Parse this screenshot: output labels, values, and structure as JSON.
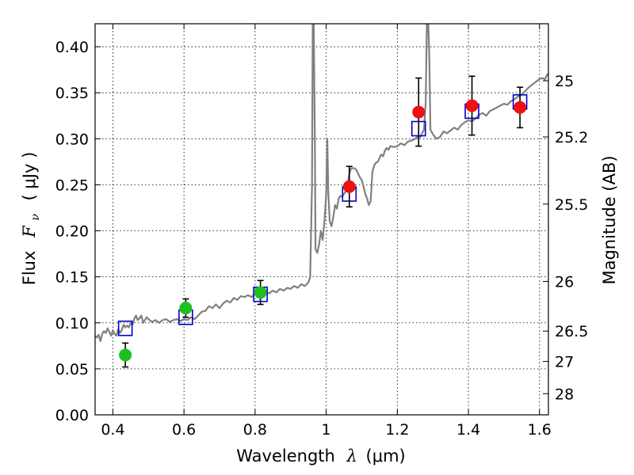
{
  "chart_data": {
    "type": "scatter",
    "xlabel": "Wavelength",
    "xlabel_symbol": "λ",
    "xlabel_unit": "(μm)",
    "ylabel": "Flux",
    "ylabel_symbol": "F",
    "ylabel_symbol_sub": "ν",
    "ylabel_unit": "( μJy )",
    "y2label": "Magnitude (AB)",
    "xlim": [
      0.35,
      1.625
    ],
    "ylim": [
      0.0,
      0.425
    ],
    "grid": true,
    "x_ticks": [
      0.4,
      0.6,
      0.8,
      1.0,
      1.2,
      1.4,
      1.6
    ],
    "x_tick_labels": [
      "0.4",
      "0.6",
      "0.8",
      "1",
      "1.2",
      "1.4",
      "1.6"
    ],
    "y_ticks": [
      0.0,
      0.05,
      0.1,
      0.15,
      0.2,
      0.25,
      0.3,
      0.35,
      0.4
    ],
    "y_tick_labels": [
      "0.00",
      "0.05",
      "0.10",
      "0.15",
      "0.20",
      "0.25",
      "0.30",
      "0.35",
      "0.40"
    ],
    "y2_ticks": [
      {
        "label": "25",
        "flux": 0.363
      },
      {
        "label": "25.2",
        "flux": 0.302
      },
      {
        "label": "25.5",
        "flux": 0.229
      },
      {
        "label": "26",
        "flux": 0.145
      },
      {
        "label": "26.5",
        "flux": 0.091
      },
      {
        "label": "27",
        "flux": 0.058
      },
      {
        "label": "28",
        "flux": 0.023
      }
    ],
    "series": [
      {
        "kind": "line",
        "color": "#808080",
        "points": [
          [
            0.35,
            0.086
          ],
          [
            0.355,
            0.084
          ],
          [
            0.36,
            0.087
          ],
          [
            0.365,
            0.08
          ],
          [
            0.37,
            0.088
          ],
          [
            0.375,
            0.091
          ],
          [
            0.38,
            0.089
          ],
          [
            0.385,
            0.094
          ],
          [
            0.39,
            0.09
          ],
          [
            0.395,
            0.086
          ],
          [
            0.4,
            0.092
          ],
          [
            0.405,
            0.088
          ],
          [
            0.41,
            0.086
          ],
          [
            0.415,
            0.093
          ],
          [
            0.42,
            0.089
          ],
          [
            0.425,
            0.092
          ],
          [
            0.43,
            0.098
          ],
          [
            0.435,
            0.095
          ],
          [
            0.44,
            0.097
          ],
          [
            0.445,
            0.095
          ],
          [
            0.45,
            0.1
          ],
          [
            0.455,
            0.098
          ],
          [
            0.46,
            0.104
          ],
          [
            0.465,
            0.108
          ],
          [
            0.47,
            0.103
          ],
          [
            0.475,
            0.105
          ],
          [
            0.48,
            0.108
          ],
          [
            0.485,
            0.1
          ],
          [
            0.49,
            0.103
          ],
          [
            0.495,
            0.106
          ],
          [
            0.5,
            0.104
          ],
          [
            0.51,
            0.101
          ],
          [
            0.52,
            0.103
          ],
          [
            0.53,
            0.1
          ],
          [
            0.54,
            0.103
          ],
          [
            0.55,
            0.104
          ],
          [
            0.56,
            0.101
          ],
          [
            0.57,
            0.103
          ],
          [
            0.58,
            0.104
          ],
          [
            0.59,
            0.102
          ],
          [
            0.6,
            0.104
          ],
          [
            0.61,
            0.103
          ],
          [
            0.62,
            0.106
          ],
          [
            0.63,
            0.104
          ],
          [
            0.64,
            0.108
          ],
          [
            0.65,
            0.112
          ],
          [
            0.66,
            0.113
          ],
          [
            0.67,
            0.118
          ],
          [
            0.68,
            0.116
          ],
          [
            0.69,
            0.12
          ],
          [
            0.7,
            0.116
          ],
          [
            0.71,
            0.121
          ],
          [
            0.72,
            0.124
          ],
          [
            0.73,
            0.122
          ],
          [
            0.74,
            0.127
          ],
          [
            0.75,
            0.125
          ],
          [
            0.76,
            0.129
          ],
          [
            0.77,
            0.128
          ],
          [
            0.78,
            0.13
          ],
          [
            0.79,
            0.128
          ],
          [
            0.8,
            0.132
          ],
          [
            0.81,
            0.133
          ],
          [
            0.82,
            0.131
          ],
          [
            0.83,
            0.134
          ],
          [
            0.84,
            0.132
          ],
          [
            0.85,
            0.135
          ],
          [
            0.86,
            0.133
          ],
          [
            0.87,
            0.137
          ],
          [
            0.88,
            0.135
          ],
          [
            0.89,
            0.138
          ],
          [
            0.9,
            0.137
          ],
          [
            0.91,
            0.14
          ],
          [
            0.92,
            0.138
          ],
          [
            0.93,
            0.142
          ],
          [
            0.94,
            0.14
          ],
          [
            0.95,
            0.144
          ],
          [
            0.955,
            0.15
          ],
          [
            0.96,
            0.25
          ],
          [
            0.962,
            0.425
          ],
          [
            0.965,
            0.425
          ],
          [
            0.968,
            0.3
          ],
          [
            0.97,
            0.18
          ],
          [
            0.975,
            0.176
          ],
          [
            0.98,
            0.185
          ],
          [
            0.985,
            0.2
          ],
          [
            0.99,
            0.19
          ],
          [
            0.995,
            0.21
          ],
          [
            1.0,
            0.24
          ],
          [
            1.003,
            0.3
          ],
          [
            1.006,
            0.24
          ],
          [
            1.01,
            0.21
          ],
          [
            1.015,
            0.205
          ],
          [
            1.02,
            0.215
          ],
          [
            1.025,
            0.228
          ],
          [
            1.03,
            0.224
          ],
          [
            1.035,
            0.235
          ],
          [
            1.04,
            0.238
          ],
          [
            1.045,
            0.237
          ],
          [
            1.05,
            0.24
          ],
          [
            1.055,
            0.243
          ],
          [
            1.06,
            0.25
          ],
          [
            1.065,
            0.262
          ],
          [
            1.07,
            0.268
          ],
          [
            1.08,
            0.268
          ],
          [
            1.085,
            0.266
          ],
          [
            1.09,
            0.262
          ],
          [
            1.095,
            0.258
          ],
          [
            1.1,
            0.255
          ],
          [
            1.105,
            0.248
          ],
          [
            1.11,
            0.24
          ],
          [
            1.115,
            0.235
          ],
          [
            1.12,
            0.228
          ],
          [
            1.125,
            0.232
          ],
          [
            1.13,
            0.264
          ],
          [
            1.135,
            0.271
          ],
          [
            1.14,
            0.274
          ],
          [
            1.145,
            0.275
          ],
          [
            1.15,
            0.279
          ],
          [
            1.155,
            0.283
          ],
          [
            1.16,
            0.281
          ],
          [
            1.165,
            0.287
          ],
          [
            1.17,
            0.29
          ],
          [
            1.175,
            0.288
          ],
          [
            1.18,
            0.292
          ],
          [
            1.19,
            0.291
          ],
          [
            1.2,
            0.292
          ],
          [
            1.21,
            0.295
          ],
          [
            1.22,
            0.293
          ],
          [
            1.23,
            0.297
          ],
          [
            1.24,
            0.298
          ],
          [
            1.25,
            0.3
          ],
          [
            1.26,
            0.303
          ],
          [
            1.265,
            0.302
          ],
          [
            1.27,
            0.306
          ],
          [
            1.275,
            0.31
          ],
          [
            1.28,
            0.34
          ],
          [
            1.283,
            0.425
          ],
          [
            1.287,
            0.425
          ],
          [
            1.29,
            0.39
          ],
          [
            1.293,
            0.31
          ],
          [
            1.3,
            0.305
          ],
          [
            1.31,
            0.3
          ],
          [
            1.32,
            0.302
          ],
          [
            1.33,
            0.308
          ],
          [
            1.34,
            0.306
          ],
          [
            1.35,
            0.309
          ],
          [
            1.36,
            0.312
          ],
          [
            1.37,
            0.31
          ],
          [
            1.38,
            0.315
          ],
          [
            1.39,
            0.318
          ],
          [
            1.4,
            0.32
          ],
          [
            1.41,
            0.319
          ],
          [
            1.42,
            0.322
          ],
          [
            1.43,
            0.326
          ],
          [
            1.44,
            0.328
          ],
          [
            1.45,
            0.325
          ],
          [
            1.46,
            0.33
          ],
          [
            1.47,
            0.332
          ],
          [
            1.48,
            0.334
          ],
          [
            1.49,
            0.336
          ],
          [
            1.5,
            0.338
          ],
          [
            1.51,
            0.337
          ],
          [
            1.52,
            0.341
          ],
          [
            1.53,
            0.343
          ],
          [
            1.54,
            0.346
          ],
          [
            1.55,
            0.348
          ],
          [
            1.56,
            0.352
          ],
          [
            1.57,
            0.356
          ],
          [
            1.58,
            0.359
          ],
          [
            1.59,
            0.362
          ],
          [
            1.6,
            0.365
          ],
          [
            1.61,
            0.366
          ],
          [
            1.615,
            0.364
          ],
          [
            1.62,
            0.369
          ],
          [
            1.625,
            0.371
          ]
        ]
      },
      {
        "kind": "open-square",
        "color": "#0000cc",
        "points": [
          [
            0.435,
            0.094
          ],
          [
            0.605,
            0.106
          ],
          [
            0.815,
            0.131
          ],
          [
            1.065,
            0.24
          ],
          [
            1.26,
            0.311
          ],
          [
            1.41,
            0.33
          ],
          [
            1.545,
            0.34
          ]
        ]
      },
      {
        "kind": "filled-circle",
        "color": "#1fbf1f",
        "points": [
          {
            "x": 0.435,
            "y": 0.065,
            "err": 0.013
          },
          {
            "x": 0.605,
            "y": 0.116,
            "err": 0.01
          },
          {
            "x": 0.815,
            "y": 0.133,
            "err": 0.013
          }
        ]
      },
      {
        "kind": "filled-circle",
        "color": "#ee1111",
        "points": [
          {
            "x": 1.065,
            "y": 0.248,
            "err": 0.022
          },
          {
            "x": 1.26,
            "y": 0.329,
            "err": 0.037
          },
          {
            "x": 1.41,
            "y": 0.336,
            "err": 0.032
          },
          {
            "x": 1.545,
            "y": 0.334,
            "err": 0.022
          }
        ]
      }
    ]
  }
}
